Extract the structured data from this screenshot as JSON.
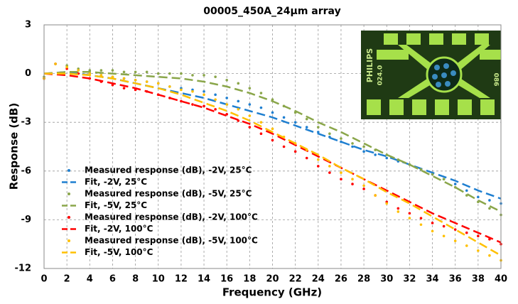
{
  "chart_data": {
    "type": "line",
    "title": "00005_450A_24µm array",
    "x_label": "Frequency (GHz)",
    "y_label": "Response (dB)",
    "xlim": [
      0,
      40
    ],
    "xticks": [
      0,
      2,
      4,
      6,
      8,
      10,
      12,
      14,
      16,
      18,
      20,
      22,
      24,
      26,
      28,
      30,
      32,
      34,
      36,
      38,
      40
    ],
    "ylim": [
      -12,
      3
    ],
    "yticks": [
      -12,
      -9,
      -6,
      -3,
      0,
      3
    ],
    "grid": true,
    "legend": "lower left",
    "inset_texts": [
      "PHILIPS",
      "024.0",
      "086"
    ],
    "series": [
      {
        "name": "Measured response (dB), -2V, 25°C",
        "color": "#1f7fd0",
        "style": "markers",
        "x": [
          0,
          1,
          2,
          3,
          4,
          5,
          6,
          7,
          8,
          9,
          10,
          11,
          12,
          13,
          14,
          15,
          16,
          17,
          18,
          19,
          20,
          21,
          22,
          23,
          24,
          25,
          26,
          27,
          28,
          29,
          30,
          31,
          32,
          33,
          34,
          35,
          36,
          37,
          38,
          39,
          40
        ],
        "values": [
          -0.3,
          0.6,
          0.4,
          0.2,
          0,
          -0.1,
          -0.2,
          -0.3,
          -0.4,
          -0.5,
          -0.6,
          -0.8,
          -0.9,
          -1.0,
          -1.1,
          -1.3,
          -1.5,
          -1.7,
          -1.9,
          -2.1,
          -2.4,
          -2.7,
          -3.0,
          -3.3,
          -3.6,
          -3.9,
          -4.2,
          -4.5,
          -4.8,
          -5.0,
          -5.2,
          -5.4,
          -5.6,
          -5.9,
          -6.2,
          -6.5,
          -6.8,
          -7.2,
          -7.6,
          -7.8,
          -8.0
        ]
      },
      {
        "name": "Fit, -2V, 25°C",
        "color": "#1f7fd0",
        "style": "dashed",
        "x": [
          0,
          2,
          4,
          6,
          8,
          10,
          12,
          14,
          16,
          18,
          20,
          22,
          24,
          26,
          28,
          30,
          32,
          34,
          36,
          38,
          40
        ],
        "values": [
          0,
          0.1,
          -0.1,
          -0.3,
          -0.6,
          -0.9,
          -1.2,
          -1.5,
          -1.9,
          -2.3,
          -2.7,
          -3.2,
          -3.7,
          -4.2,
          -4.7,
          -5.1,
          -5.6,
          -6.1,
          -6.6,
          -7.2,
          -7.7
        ]
      },
      {
        "name": "Measured response (dB), -5V, 25°C",
        "color": "#8aa64a",
        "style": "markers",
        "x": [
          0,
          1,
          2,
          3,
          4,
          5,
          6,
          7,
          8,
          9,
          10,
          11,
          12,
          13,
          14,
          15,
          16,
          17,
          18,
          19,
          20,
          21,
          22,
          23,
          24,
          25,
          26,
          27,
          28,
          29,
          30,
          31,
          32,
          33,
          34,
          35,
          36,
          37,
          38,
          39,
          40
        ],
        "values": [
          -0.2,
          0.6,
          0.5,
          0.3,
          0.2,
          0.2,
          0.2,
          0.1,
          0.1,
          0.1,
          0,
          0,
          0,
          -0.1,
          -0.1,
          -0.2,
          -0.4,
          -0.6,
          -0.9,
          -1.2,
          -1.6,
          -2.0,
          -2.4,
          -2.8,
          -3.3,
          -3.7,
          -4.0,
          -4.3,
          -4.5,
          -4.7,
          -5.0,
          -5.3,
          -5.6,
          -5.9,
          -6.2,
          -6.5,
          -7.0,
          -7.5,
          -7.9,
          -8.3,
          -8.7
        ]
      },
      {
        "name": "Fit, -5V, 25°C",
        "color": "#8aa64a",
        "style": "dashed",
        "x": [
          0,
          2,
          4,
          6,
          8,
          10,
          12,
          14,
          16,
          18,
          20,
          22,
          24,
          26,
          28,
          30,
          32,
          34,
          36,
          38,
          40
        ],
        "values": [
          0,
          0.1,
          0.1,
          0,
          -0.1,
          -0.2,
          -0.3,
          -0.5,
          -0.8,
          -1.2,
          -1.7,
          -2.3,
          -3.0,
          -3.6,
          -4.3,
          -5.0,
          -5.6,
          -6.3,
          -7.0,
          -7.8,
          -8.5
        ]
      },
      {
        "name": "Measured response (dB), -2V, 100°C",
        "color": "#ff0000",
        "style": "markers",
        "x": [
          0,
          1,
          2,
          3,
          4,
          5,
          6,
          7,
          8,
          9,
          10,
          11,
          12,
          13,
          14,
          15,
          16,
          17,
          18,
          19,
          20,
          21,
          22,
          23,
          24,
          25,
          26,
          27,
          28,
          29,
          30,
          31,
          32,
          33,
          34,
          35,
          36,
          37,
          38,
          39,
          40
        ],
        "values": [
          -0.3,
          0.6,
          0.3,
          0,
          -0.3,
          -0.5,
          -0.7,
          -0.9,
          -1.0,
          -1.1,
          -1.3,
          -1.5,
          -1.7,
          -1.9,
          -2.0,
          -2.2,
          -2.5,
          -2.9,
          -3.3,
          -3.7,
          -4.1,
          -4.5,
          -4.8,
          -5.2,
          -5.7,
          -6.1,
          -6.5,
          -6.8,
          -7.1,
          -7.5,
          -7.9,
          -8.3,
          -8.6,
          -8.9,
          -9.2,
          -9.4,
          -9.6,
          -9.8,
          -10.0,
          -10.2,
          -10.5
        ]
      },
      {
        "name": "Fit, -2V, 100°C",
        "color": "#ff0000",
        "style": "dashed",
        "x": [
          0,
          2,
          4,
          6,
          8,
          10,
          12,
          14,
          16,
          18,
          20,
          22,
          24,
          26,
          28,
          30,
          32,
          34,
          36,
          38,
          40
        ],
        "values": [
          0,
          -0.1,
          -0.3,
          -0.6,
          -0.9,
          -1.3,
          -1.7,
          -2.1,
          -2.6,
          -3.1,
          -3.7,
          -4.4,
          -5.1,
          -5.8,
          -6.5,
          -7.2,
          -7.9,
          -8.6,
          -9.2,
          -9.8,
          -10.4
        ]
      },
      {
        "name": "Measured response (dB), -5V, 100°C",
        "color": "#ffc000",
        "style": "markers",
        "x": [
          0,
          1,
          2,
          3,
          4,
          5,
          6,
          7,
          8,
          9,
          10,
          11,
          12,
          13,
          14,
          15,
          16,
          17,
          18,
          19,
          20,
          21,
          22,
          23,
          24,
          25,
          26,
          27,
          28,
          29,
          30,
          31,
          32,
          33,
          34,
          35,
          36,
          37,
          38,
          39,
          40
        ],
        "values": [
          -0.3,
          0.6,
          0.4,
          0.2,
          0,
          -0.1,
          -0.2,
          -0.3,
          -0.4,
          -0.5,
          -0.6,
          -0.8,
          -1.0,
          -1.1,
          -1.3,
          -1.6,
          -1.9,
          -2.2,
          -2.6,
          -3.0,
          -3.4,
          -3.9,
          -4.3,
          -4.7,
          -5.3,
          -5.7,
          -6.1,
          -6.5,
          -6.9,
          -7.5,
          -8.0,
          -8.5,
          -8.9,
          -9.3,
          -9.7,
          -10.0,
          -10.3,
          -10.6,
          -10.9,
          -11.2,
          -11.5
        ]
      },
      {
        "name": "Fit, -5V, 100°C",
        "color": "#ffc000",
        "style": "dashed",
        "x": [
          0,
          2,
          4,
          6,
          8,
          10,
          12,
          14,
          16,
          18,
          20,
          22,
          24,
          26,
          28,
          30,
          32,
          34,
          36,
          38,
          40
        ],
        "values": [
          0,
          0,
          -0.1,
          -0.3,
          -0.6,
          -0.9,
          -1.3,
          -1.8,
          -2.3,
          -2.9,
          -3.6,
          -4.3,
          -5.0,
          -5.8,
          -6.5,
          -7.3,
          -8.0,
          -8.8,
          -9.6,
          -10.4,
          -11.2
        ]
      }
    ]
  }
}
